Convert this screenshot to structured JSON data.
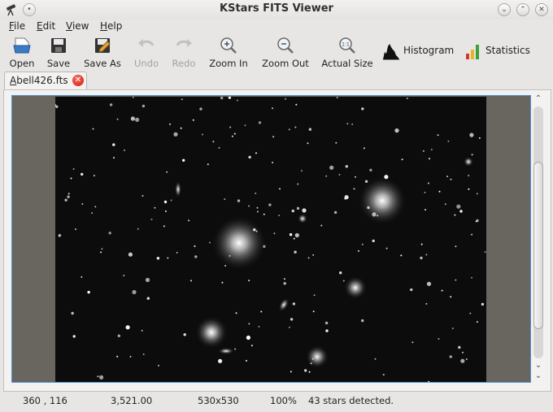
{
  "window": {
    "title": "KStars FITS Viewer"
  },
  "titlebar": {
    "app_icon": "telescope-icon",
    "pin_icon": "pin-icon",
    "minimize_icon": "chevron-down-icon",
    "maximize_icon": "chevron-up-icon",
    "close_icon": "close-icon"
  },
  "menubar": {
    "items": [
      {
        "label": "File",
        "mnemonic": "F",
        "rest": "ile"
      },
      {
        "label": "Edit",
        "mnemonic": "E",
        "rest": "dit"
      },
      {
        "label": "View",
        "mnemonic": "V",
        "rest": "iew"
      },
      {
        "label": "Help",
        "mnemonic": "H",
        "rest": "elp"
      }
    ]
  },
  "toolbar": {
    "open": {
      "label": "Open",
      "icon": "document-open-icon"
    },
    "save": {
      "label": "Save",
      "icon": "floppy-disk-icon"
    },
    "save_as": {
      "label": "Save As",
      "icon": "floppy-pencil-icon"
    },
    "undo": {
      "label": "Undo",
      "icon": "undo-arrow-icon",
      "enabled": false
    },
    "redo": {
      "label": "Redo",
      "icon": "redo-arrow-icon",
      "enabled": false
    },
    "zoom_in": {
      "label": "Zoom In",
      "icon": "zoom-in-icon"
    },
    "zoom_out": {
      "label": "Zoom Out",
      "icon": "zoom-out-icon"
    },
    "actual_size": {
      "label": "Actual Size",
      "icon": "zoom-original-icon"
    },
    "histogram": {
      "label": "Histogram",
      "icon": "histogram-icon"
    },
    "statistics": {
      "label": "Statistics",
      "icon": "bar-statistics-icon"
    }
  },
  "tabs": [
    {
      "label": "Abell426.fts",
      "mnemonic": "A",
      "rest": "bell426.fts",
      "close_icon": "close-circle-icon",
      "active": true
    }
  ],
  "colors": {
    "accent": "#4f93d1",
    "close_red": "#d0261a",
    "image_background": "#0c0c0c",
    "viewport_background": "#69655f"
  },
  "image": {
    "description": "Abell 426 galaxy cluster star field"
  },
  "statusbar": {
    "coordinates": "360 , 116",
    "pixel_value": "3,521.00",
    "image_size": "530x530",
    "zoom": "100%",
    "message": "43 stars detected."
  }
}
